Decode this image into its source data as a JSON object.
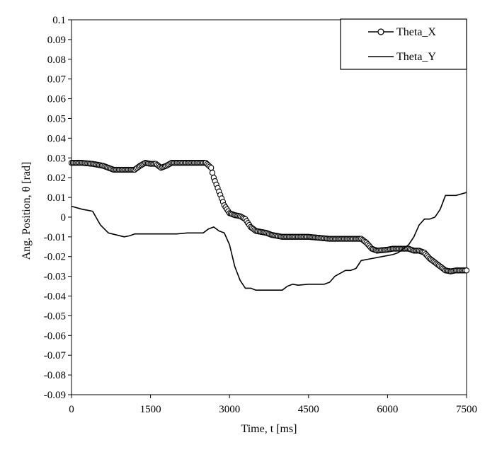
{
  "chart_data": {
    "type": "line",
    "xlabel": "Time, t [ms]",
    "ylabel": "Ang. Position, θ [rad]",
    "xlim": [
      0,
      7500
    ],
    "ylim": [
      -0.09,
      0.1
    ],
    "xticks": [
      "0",
      "1500",
      "3000",
      "4500",
      "6000",
      "7500"
    ],
    "yticks": [
      "0.1",
      "0.09",
      "0.08",
      "0.07",
      "0.06",
      "0.05",
      "0.04",
      "0.03",
      "0.02",
      "0.01",
      "0",
      "-0.01",
      "-0.02",
      "-0.03",
      "-0.04",
      "-0.05",
      "-0.06",
      "-0.07",
      "-0.08",
      "-0.09"
    ],
    "grid": false,
    "legend_position": "top-right",
    "series": [
      {
        "name": "Theta_X",
        "marker": "circle",
        "color": "#000000",
        "x": [
          0,
          200,
          400,
          600,
          800,
          1000,
          1200,
          1300,
          1400,
          1500,
          1600,
          1700,
          1800,
          1900,
          2000,
          2200,
          2400,
          2550,
          2650,
          2700,
          2800,
          2900,
          3000,
          3100,
          3200,
          3300,
          3400,
          3500,
          3700,
          3800,
          3900,
          4000,
          4200,
          4500,
          4700,
          4900,
          5100,
          5300,
          5500,
          5600,
          5700,
          5800,
          6000,
          6100,
          6200,
          6400,
          6500,
          6600,
          6700,
          6800,
          6900,
          7000,
          7100,
          7200,
          7300,
          7400,
          7500
        ],
        "y": [
          0.0275,
          0.0275,
          0.027,
          0.026,
          0.024,
          0.024,
          0.024,
          0.026,
          0.0275,
          0.027,
          0.027,
          0.025,
          0.026,
          0.0275,
          0.0275,
          0.0275,
          0.0275,
          0.0275,
          0.025,
          0.02,
          0.013,
          0.006,
          0.002,
          0.001,
          0.0005,
          -0.001,
          -0.005,
          -0.007,
          -0.008,
          -0.009,
          -0.0095,
          -0.01,
          -0.01,
          -0.01,
          -0.0105,
          -0.011,
          -0.011,
          -0.011,
          -0.011,
          -0.013,
          -0.016,
          -0.017,
          -0.0165,
          -0.016,
          -0.016,
          -0.016,
          -0.017,
          -0.017,
          -0.018,
          -0.021,
          -0.023,
          -0.025,
          -0.027,
          -0.0275,
          -0.027,
          -0.027,
          -0.027
        ]
      },
      {
        "name": "Theta_Y",
        "marker": "none",
        "color": "#000000",
        "x": [
          0,
          200,
          400,
          550,
          700,
          1000,
          1100,
          1200,
          1500,
          1800,
          2000,
          2200,
          2500,
          2600,
          2700,
          2800,
          2900,
          3000,
          3100,
          3200,
          3300,
          3400,
          3500,
          3700,
          3900,
          4000,
          4100,
          4200,
          4300,
          4500,
          4600,
          4800,
          4900,
          5000,
          5200,
          5300,
          5400,
          5500,
          5700,
          5900,
          6100,
          6200,
          6300,
          6400,
          6500,
          6600,
          6700,
          6800,
          6900,
          7000,
          7100,
          7300,
          7500
        ],
        "y": [
          0.0055,
          0.004,
          0.003,
          -0.004,
          -0.008,
          -0.01,
          -0.0095,
          -0.0085,
          -0.0085,
          -0.0085,
          -0.0085,
          -0.008,
          -0.008,
          -0.006,
          -0.005,
          -0.007,
          -0.008,
          -0.014,
          -0.025,
          -0.032,
          -0.036,
          -0.036,
          -0.037,
          -0.037,
          -0.037,
          -0.037,
          -0.035,
          -0.034,
          -0.0345,
          -0.034,
          -0.034,
          -0.034,
          -0.033,
          -0.03,
          -0.027,
          -0.027,
          -0.026,
          -0.022,
          -0.021,
          -0.02,
          -0.019,
          -0.018,
          -0.016,
          -0.014,
          -0.01,
          -0.004,
          -0.001,
          -0.001,
          0,
          0.004,
          0.011,
          0.011,
          0.0125
        ]
      }
    ]
  }
}
